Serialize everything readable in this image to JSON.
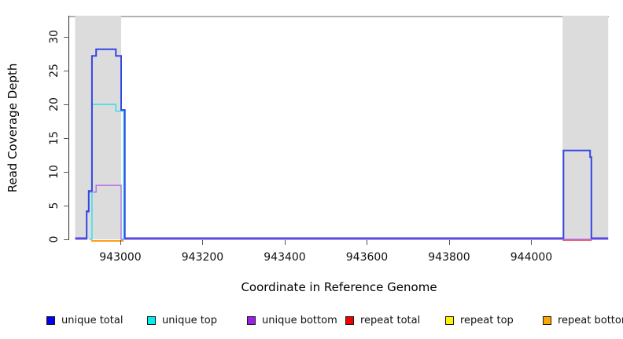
{
  "figure": {
    "background": "#ffffff",
    "shaded_region_color": "#dcdcdc",
    "top_boundary_color": "#8f8f8f",
    "axis_color": "#2b2b2b"
  },
  "chart_data": {
    "type": "line",
    "subtype": "step-coverage",
    "title": "",
    "xlabel": "Coordinate in Reference Genome",
    "ylabel": "Read Coverage Depth",
    "xlim": [
      942876,
      944190
    ],
    "ylim": [
      0,
      33
    ],
    "x_ticks": [
      943000,
      943200,
      943400,
      943600,
      943800,
      944000
    ],
    "y_ticks": [
      0,
      5,
      10,
      15,
      20,
      25,
      30
    ],
    "grid": false,
    "legend_position": "bottom",
    "top_boundary_value": 33,
    "shaded_regions": [
      {
        "x0": 942890,
        "x1": 943002
      },
      {
        "x0": 944076,
        "x1": 944187
      }
    ],
    "series": [
      {
        "name": "unique total",
        "color": "#3347e3",
        "legend_color": "#0000f0",
        "steps": [
          [
            942890,
            0
          ],
          [
            942918,
            4
          ],
          [
            942923,
            7
          ],
          [
            942931,
            27
          ],
          [
            942941,
            28
          ],
          [
            942989,
            27
          ],
          [
            943002,
            19
          ],
          [
            943011,
            0
          ],
          [
            944078,
            13
          ],
          [
            944143,
            12
          ],
          [
            944146,
            0
          ]
        ],
        "end": 944187
      },
      {
        "name": "unique top",
        "color": "#2bdfe8",
        "legend_color": "#00eeee",
        "steps": [
          [
            942925,
            0
          ],
          [
            942931,
            20
          ],
          [
            942989,
            19
          ],
          [
            943008,
            0
          ]
        ],
        "end": 943011
      },
      {
        "name": "unique bottom",
        "color": "#b46fe6",
        "legend_color": "#9c1fe8",
        "steps": [
          [
            942890,
            0
          ],
          [
            942918,
            4
          ],
          [
            942923,
            7
          ],
          [
            942941,
            8
          ],
          [
            943002,
            0
          ]
        ],
        "end": 944187
      },
      {
        "name": "repeat total",
        "color": "#e83040",
        "legend_color": "#f00000",
        "steps": [
          [
            944076,
            0
          ]
        ],
        "end": 944147
      },
      {
        "name": "repeat top",
        "color": "#ffe71a",
        "legend_color": "#fff200",
        "steps": [],
        "end": null
      },
      {
        "name": "repeat bottom",
        "color": "#ff9f1a",
        "legend_color": "#ffa500",
        "steps": [
          [
            942929,
            0
          ]
        ],
        "end": 943008
      }
    ]
  }
}
